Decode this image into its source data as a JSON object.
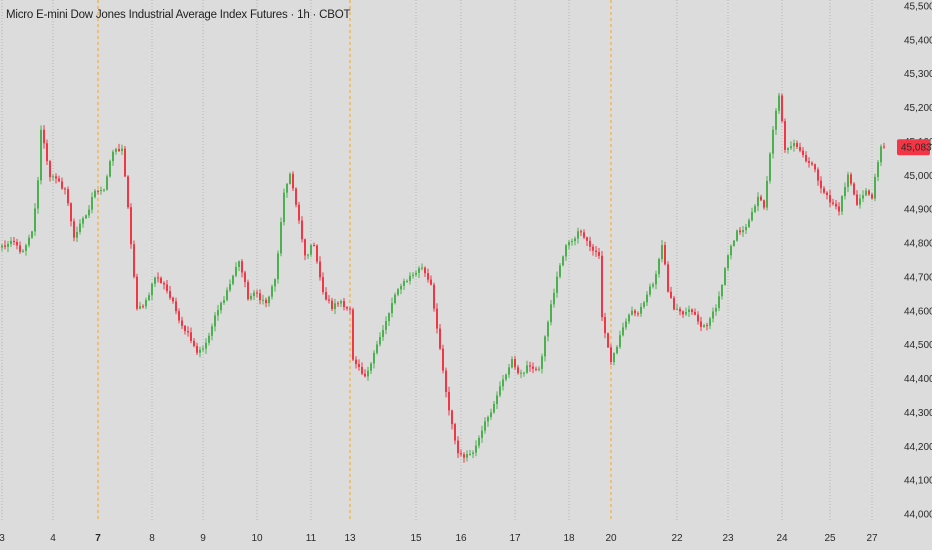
{
  "title": "Micro E-mini Dow Jones Industrial Average Index Futures · 1h · CBOT",
  "colors": {
    "up": "#4caf50",
    "down": "#f23645",
    "background": "#dcdcdc",
    "grid": "#b5b5b5",
    "session": "#f5a623"
  },
  "last_price": {
    "label": "45,083",
    "value": 45083
  },
  "chart_data": {
    "type": "candlestick",
    "timeframe": "1h",
    "ylim": [
      44000,
      45500
    ],
    "y_ticks": [
      {
        "label": "45,500",
        "value": 45500
      },
      {
        "label": "45,400",
        "value": 45400
      },
      {
        "label": "45,300",
        "value": 45300
      },
      {
        "label": "45,200",
        "value": 45200
      },
      {
        "label": "45,100",
        "value": 45100
      },
      {
        "label": "45,000",
        "value": 45000
      },
      {
        "label": "44,900",
        "value": 44900
      },
      {
        "label": "44,800",
        "value": 44800
      },
      {
        "label": "44,700",
        "value": 44700
      },
      {
        "label": "44,600",
        "value": 44600
      },
      {
        "label": "44,500",
        "value": 44500
      },
      {
        "label": "44,400",
        "value": 44400
      },
      {
        "label": "44,300",
        "value": 44300
      },
      {
        "label": "44,200",
        "value": 44200
      },
      {
        "label": "44,100",
        "value": 44100
      },
      {
        "label": "44,000",
        "value": 44000
      }
    ],
    "x_ticks": [
      {
        "label": "3",
        "index": 0,
        "bold": false,
        "session": false
      },
      {
        "label": "4",
        "index": 17,
        "bold": false,
        "session": false
      },
      {
        "label": "7",
        "index": 32,
        "bold": true,
        "session": true
      },
      {
        "label": "8",
        "index": 50,
        "bold": false,
        "session": false
      },
      {
        "label": "9",
        "index": 67,
        "bold": false,
        "session": false
      },
      {
        "label": "10",
        "index": 85,
        "bold": false,
        "session": false
      },
      {
        "label": "11",
        "index": 103,
        "bold": false,
        "session": false
      },
      {
        "label": "13",
        "index": 116,
        "bold": false,
        "session": true
      },
      {
        "label": "15",
        "index": 138,
        "bold": false,
        "session": false
      },
      {
        "label": "16",
        "index": 153,
        "bold": false,
        "session": false
      },
      {
        "label": "17",
        "index": 171,
        "bold": false,
        "session": false
      },
      {
        "label": "18",
        "index": 189,
        "bold": false,
        "session": false
      },
      {
        "label": "20",
        "index": 203,
        "bold": false,
        "session": true
      },
      {
        "label": "22",
        "index": 225,
        "bold": false,
        "session": false
      },
      {
        "label": "23",
        "index": 242,
        "bold": false,
        "session": false
      },
      {
        "label": "24",
        "index": 260,
        "bold": false,
        "session": false
      },
      {
        "label": "25",
        "index": 276,
        "bold": false,
        "session": false
      },
      {
        "label": "27",
        "index": 290,
        "bold": false,
        "session": false
      }
    ],
    "close_anchors": [
      [
        0,
        44790
      ],
      [
        4,
        44800
      ],
      [
        7,
        44770
      ],
      [
        10,
        44830
      ],
      [
        12,
        44980
      ],
      [
        13,
        45140
      ],
      [
        16,
        45000
      ],
      [
        21,
        44960
      ],
      [
        24,
        44820
      ],
      [
        26,
        44850
      ],
      [
        29,
        44900
      ],
      [
        31,
        44960
      ],
      [
        34,
        44960
      ],
      [
        37,
        45070
      ],
      [
        40,
        45080
      ],
      [
        42,
        44900
      ],
      [
        45,
        44600
      ],
      [
        48,
        44630
      ],
      [
        51,
        44700
      ],
      [
        54,
        44680
      ],
      [
        57,
        44620
      ],
      [
        60,
        44560
      ],
      [
        63,
        44520
      ],
      [
        65,
        44480
      ],
      [
        68,
        44500
      ],
      [
        71,
        44580
      ],
      [
        73,
        44620
      ],
      [
        76,
        44680
      ],
      [
        79,
        44750
      ],
      [
        82,
        44640
      ],
      [
        85,
        44650
      ],
      [
        88,
        44620
      ],
      [
        91,
        44690
      ],
      [
        94,
        44940
      ],
      [
        96,
        45010
      ],
      [
        98,
        44910
      ],
      [
        101,
        44760
      ],
      [
        104,
        44800
      ],
      [
        107,
        44650
      ],
      [
        110,
        44610
      ],
      [
        113,
        44630
      ],
      [
        116,
        44600
      ],
      [
        117,
        44450
      ],
      [
        121,
        44400
      ],
      [
        124,
        44480
      ],
      [
        127,
        44540
      ],
      [
        130,
        44620
      ],
      [
        133,
        44680
      ],
      [
        136,
        44700
      ],
      [
        140,
        44730
      ],
      [
        143,
        44680
      ],
      [
        146,
        44480
      ],
      [
        149,
        44300
      ],
      [
        152,
        44180
      ],
      [
        155,
        44170
      ],
      [
        158,
        44200
      ],
      [
        161,
        44280
      ],
      [
        164,
        44320
      ],
      [
        167,
        44400
      ],
      [
        170,
        44450
      ],
      [
        173,
        44410
      ],
      [
        176,
        44440
      ],
      [
        179,
        44420
      ],
      [
        182,
        44570
      ],
      [
        185,
        44700
      ],
      [
        188,
        44790
      ],
      [
        190,
        44810
      ],
      [
        193,
        44840
      ],
      [
        196,
        44790
      ],
      [
        199,
        44760
      ],
      [
        200,
        44580
      ],
      [
        203,
        44450
      ],
      [
        206,
        44520
      ],
      [
        209,
        44590
      ],
      [
        212,
        44600
      ],
      [
        215,
        44640
      ],
      [
        218,
        44710
      ],
      [
        220,
        44800
      ],
      [
        222,
        44660
      ],
      [
        224,
        44600
      ],
      [
        227,
        44590
      ],
      [
        230,
        44600
      ],
      [
        233,
        44550
      ],
      [
        236,
        44570
      ],
      [
        239,
        44640
      ],
      [
        242,
        44760
      ],
      [
        245,
        44830
      ],
      [
        249,
        44860
      ],
      [
        252,
        44940
      ],
      [
        254,
        44900
      ],
      [
        257,
        45140
      ],
      [
        259,
        45230
      ],
      [
        261,
        45080
      ],
      [
        264,
        45100
      ],
      [
        267,
        45060
      ],
      [
        270,
        45030
      ],
      [
        273,
        44970
      ],
      [
        276,
        44920
      ],
      [
        279,
        44900
      ],
      [
        282,
        45000
      ],
      [
        285,
        44920
      ],
      [
        288,
        44950
      ],
      [
        290,
        44940
      ],
      [
        293,
        45080
      ],
      [
        294,
        45083
      ]
    ]
  }
}
